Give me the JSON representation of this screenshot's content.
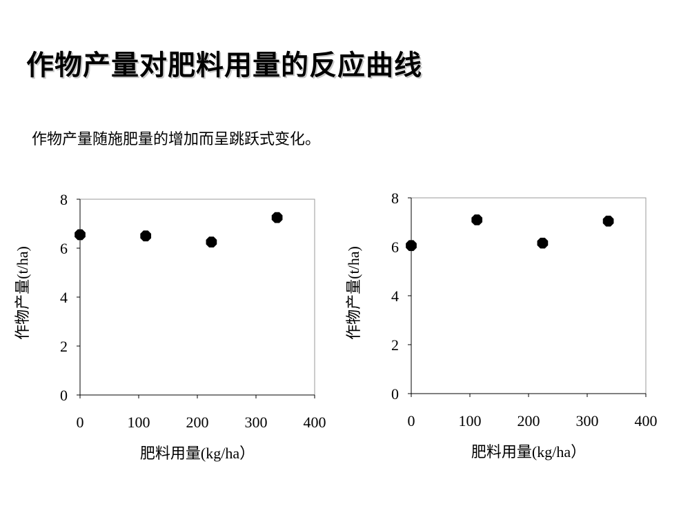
{
  "slide": {
    "title": "作物产量对肥料用量的反应曲线",
    "subtitle": "作物产量随施肥量的增加而呈跳跃式变化。"
  },
  "chart_data": [
    {
      "type": "scatter",
      "title": "",
      "xlabel": "肥料用量(kg/ha）",
      "ylabel": "作物产量(t/ha)",
      "xlim": [
        0,
        400
      ],
      "ylim": [
        0,
        8
      ],
      "x_ticks": [
        0,
        100,
        200,
        300,
        400
      ],
      "y_ticks": [
        0,
        2,
        4,
        6,
        8
      ],
      "grid": false,
      "marker_color": "#000000",
      "series": [
        {
          "x": [
            0,
            112,
            224,
            336
          ],
          "y": [
            6.55,
            6.5,
            6.25,
            7.25
          ]
        }
      ]
    },
    {
      "type": "scatter",
      "title": "",
      "xlabel": "肥料用量(kg/ha）",
      "ylabel": "作物产量(t/ha)",
      "xlim": [
        0,
        400
      ],
      "ylim": [
        0,
        8
      ],
      "x_ticks": [
        0,
        100,
        200,
        300,
        400
      ],
      "y_ticks": [
        0,
        2,
        4,
        6,
        8
      ],
      "grid": false,
      "marker_color": "#000000",
      "series": [
        {
          "x": [
            0,
            112,
            224,
            336
          ],
          "y": [
            6.05,
            7.1,
            6.15,
            7.05
          ]
        }
      ]
    }
  ]
}
